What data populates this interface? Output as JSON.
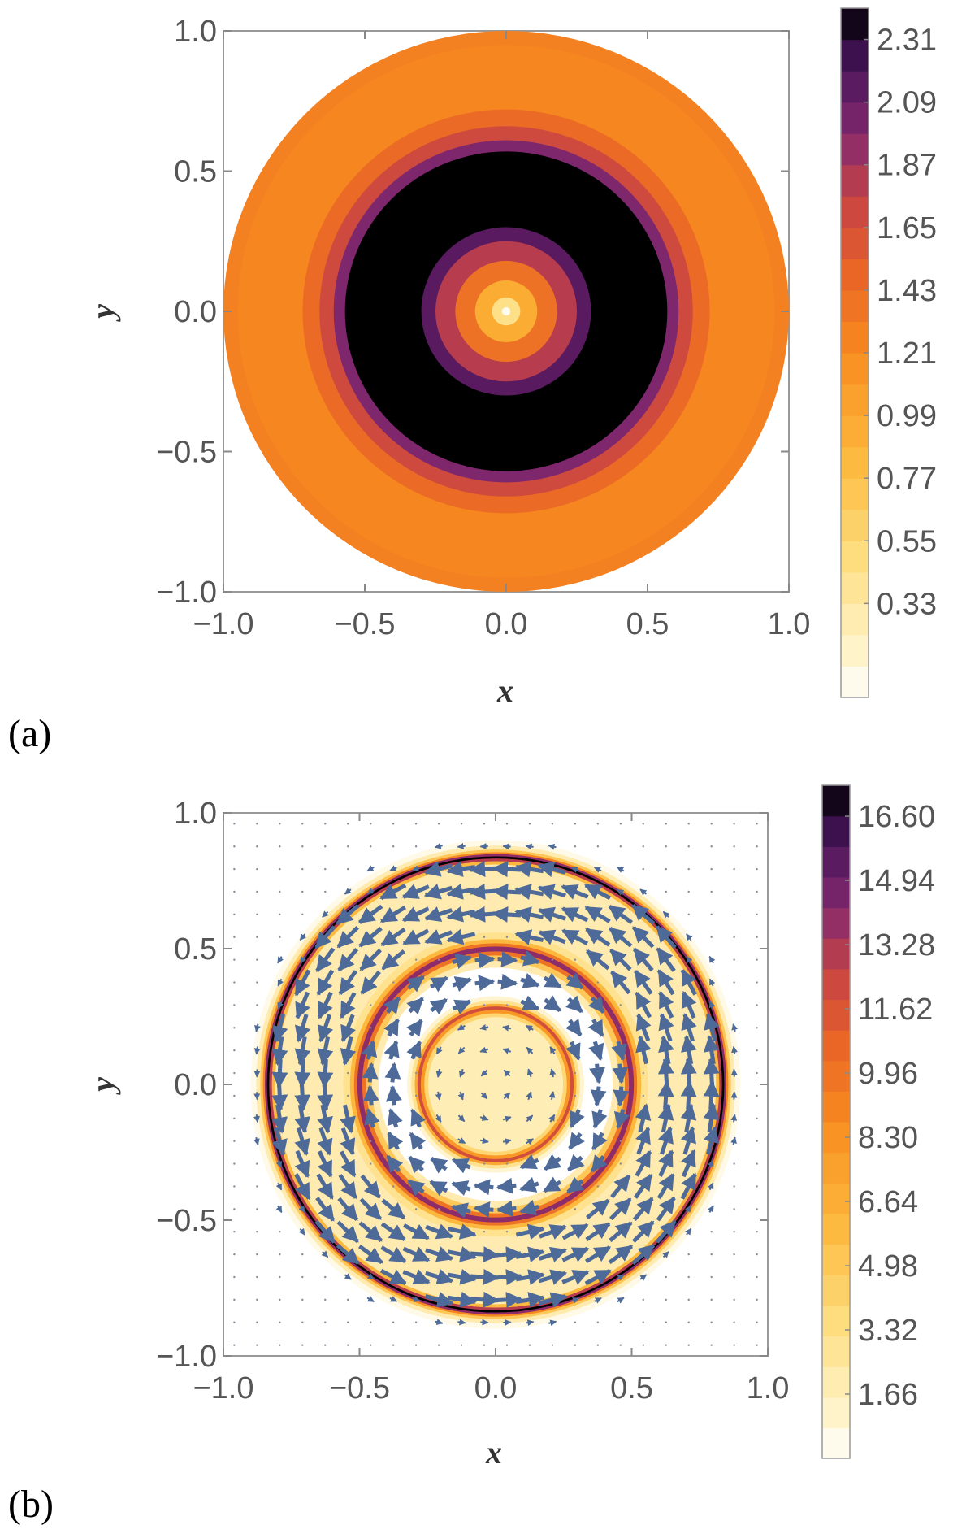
{
  "chart_data": [
    {
      "type": "heatmap",
      "panel_label": "(a)",
      "xlabel": "x",
      "ylabel": "y",
      "xlim": [
        -1.0,
        1.0
      ],
      "ylim": [
        -1.0,
        1.0
      ],
      "x_ticks": [
        "−1.0",
        "−0.5",
        "0.0",
        "0.5",
        "1.0"
      ],
      "y_ticks": [
        "1.0",
        "0.5",
        "0.0",
        "−0.5",
        "−1.0"
      ],
      "x_tick_values": [
        -1.0,
        -0.5,
        0.0,
        0.5,
        1.0
      ],
      "y_tick_values": [
        1.0,
        0.5,
        0.0,
        -0.5,
        -1.0
      ],
      "colorbar_labels": [
        "2.31",
        "2.09",
        "1.87",
        "1.65",
        "1.43",
        "1.21",
        "0.99",
        "0.77",
        "0.55",
        "0.33"
      ],
      "colorbar_values": [
        2.31,
        2.09,
        1.87,
        1.65,
        1.43,
        1.21,
        0.99,
        0.77,
        0.55,
        0.33
      ],
      "colorbar_range": [
        0.0,
        2.42
      ],
      "domain_radius": 1.0,
      "rings": [
        {
          "r": 1.0,
          "value": 1.3
        },
        {
          "r": 0.95,
          "value": 1.25
        },
        {
          "r": 0.72,
          "value": 1.45
        },
        {
          "r": 0.66,
          "value": 1.7
        },
        {
          "r": 0.61,
          "value": 2.0
        },
        {
          "r": 0.57,
          "value": 2.42
        },
        {
          "r": 0.3,
          "value": 2.15
        },
        {
          "r": 0.25,
          "value": 1.8
        },
        {
          "r": 0.18,
          "value": 1.4
        },
        {
          "r": 0.11,
          "value": 0.95
        },
        {
          "r": 0.05,
          "value": 0.45
        },
        {
          "r": 0.015,
          "value": 0.05
        }
      ]
    },
    {
      "type": "heatmap",
      "overlay": "vector field (circulating arrows)",
      "panel_label": "(b)",
      "xlabel": "x",
      "ylabel": "y",
      "xlim": [
        -1.0,
        1.0
      ],
      "ylim": [
        -1.0,
        1.0
      ],
      "x_ticks": [
        "−1.0",
        "−0.5",
        "0.0",
        "0.5",
        "1.0"
      ],
      "y_ticks": [
        "1.0",
        "0.5",
        "0.0",
        "−0.5",
        "−1.0"
      ],
      "x_tick_values": [
        -1.0,
        -0.5,
        0.0,
        0.5,
        1.0
      ],
      "y_tick_values": [
        1.0,
        0.5,
        0.0,
        -0.5,
        -1.0
      ],
      "colorbar_labels": [
        "16.60",
        "14.94",
        "13.28",
        "11.62",
        "9.96",
        "8.30",
        "6.64",
        "4.98",
        "3.32",
        "1.66"
      ],
      "colorbar_values": [
        16.6,
        14.94,
        13.28,
        11.62,
        9.96,
        8.3,
        6.64,
        4.98,
        3.32,
        1.66
      ],
      "colorbar_range": [
        0.0,
        17.4
      ],
      "background_rings": [
        {
          "r": 0.9,
          "value": 0.5
        },
        {
          "r": 0.88,
          "value": 2.0
        },
        {
          "r": 0.865,
          "value": 5.0
        },
        {
          "r": 0.855,
          "value": 9.0
        },
        {
          "r": 0.848,
          "value": 14.0
        },
        {
          "r": 0.84,
          "value": 17.4
        },
        {
          "r": 0.832,
          "value": 13.0
        },
        {
          "r": 0.822,
          "value": 6.0
        },
        {
          "r": 0.81,
          "value": 2.0
        },
        {
          "r": 0.56,
          "value": 3.0
        },
        {
          "r": 0.535,
          "value": 6.0
        },
        {
          "r": 0.52,
          "value": 10.0
        },
        {
          "r": 0.508,
          "value": 14.0
        },
        {
          "r": 0.49,
          "value": 10.0
        },
        {
          "r": 0.475,
          "value": 5.0
        },
        {
          "r": 0.455,
          "value": 2.0
        },
        {
          "r": 0.43,
          "value": 0.0
        },
        {
          "r": 0.325,
          "value": 1.0
        },
        {
          "r": 0.31,
          "value": 3.0
        },
        {
          "r": 0.297,
          "value": 7.0
        },
        {
          "r": 0.287,
          "value": 12.0
        },
        {
          "r": 0.275,
          "value": 8.0
        },
        {
          "r": 0.262,
          "value": 4.0
        },
        {
          "r": 0.248,
          "value": 1.8
        }
      ],
      "vector_bands": [
        {
          "r_min": 0.84,
          "r_max": 1.0,
          "direction": "ccw",
          "strength": 0.12
        },
        {
          "r_min": 0.55,
          "r_max": 0.84,
          "direction": "ccw",
          "strength": 1.0
        },
        {
          "r_min": 0.31,
          "r_max": 0.49,
          "direction": "cw",
          "strength": 0.6
        },
        {
          "r_min": 0.0,
          "r_max": 0.28,
          "direction": "ccw",
          "strength": 0.15
        }
      ]
    }
  ]
}
